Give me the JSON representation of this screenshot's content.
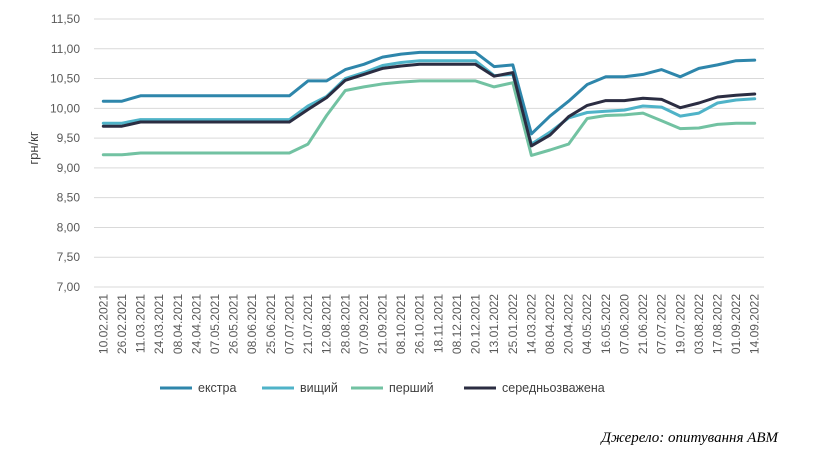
{
  "source_note": "Джерело: опитування АВМ",
  "chart_data": {
    "type": "line",
    "title": "",
    "xlabel": "",
    "ylabel": "грн/кг",
    "ylim": [
      7.0,
      11.5
    ],
    "yticks": [
      "7,00",
      "7,50",
      "8,00",
      "8,50",
      "9,00",
      "9,50",
      "10,00",
      "10,50",
      "11,00",
      "11,50"
    ],
    "grid": true,
    "legend_position": "bottom",
    "categories": [
      "10.02.2021",
      "26.02.2021",
      "11.03.2021",
      "24.03.2021",
      "08.04.2021",
      "24.04.2021",
      "07.05.2021",
      "26.05.2021",
      "08.06.2021",
      "25.06.2021",
      "07.07.2021",
      "21.07.2021",
      "12.08.2021",
      "28.08.2021",
      "07.09.2021",
      "21.09.2021",
      "08.10.2021",
      "26.10.2021",
      "18.11.2021",
      "08.12.2021",
      "20.12.2021",
      "13.01.2022",
      "25.01.2022",
      "14.03.2022",
      "08.04.2022",
      "20.04.2022",
      "04.05.2022",
      "16.05.2022",
      "07.06.2020",
      "21.06.2022",
      "07.07.2022",
      "19.07.2022",
      "03.08.2022",
      "17.08.2022",
      "01.09.2022",
      "14.09.2022"
    ],
    "series": [
      {
        "name": "екстра",
        "color": "#2e86ab",
        "values": [
          10.12,
          10.12,
          10.21,
          10.21,
          10.21,
          10.21,
          10.21,
          10.21,
          10.21,
          10.21,
          10.21,
          10.46,
          10.46,
          10.65,
          10.74,
          10.86,
          10.91,
          10.94,
          10.94,
          10.94,
          10.94,
          10.7,
          10.73,
          9.57,
          9.87,
          10.12,
          10.4,
          10.53,
          10.53,
          10.57,
          10.65,
          10.53,
          10.67,
          10.73,
          10.8,
          10.81
        ]
      },
      {
        "name": "вищий",
        "color": "#4fb3c8",
        "values": [
          9.75,
          9.75,
          9.81,
          9.81,
          9.81,
          9.81,
          9.81,
          9.81,
          9.81,
          9.81,
          9.81,
          10.04,
          10.2,
          10.5,
          10.6,
          10.72,
          10.77,
          10.8,
          10.8,
          10.8,
          10.8,
          10.55,
          10.57,
          9.4,
          9.6,
          9.84,
          9.93,
          9.95,
          9.97,
          10.04,
          10.02,
          9.87,
          9.92,
          10.09,
          10.14,
          10.16
        ]
      },
      {
        "name": "перший",
        "color": "#72c2a2",
        "values": [
          9.22,
          9.22,
          9.25,
          9.25,
          9.25,
          9.25,
          9.25,
          9.25,
          9.25,
          9.25,
          9.25,
          9.4,
          9.88,
          10.3,
          10.36,
          10.41,
          10.44,
          10.46,
          10.46,
          10.46,
          10.46,
          10.36,
          10.43,
          9.21,
          9.3,
          9.4,
          9.83,
          9.88,
          9.89,
          9.92,
          9.79,
          9.66,
          9.67,
          9.73,
          9.75,
          9.75
        ]
      },
      {
        "name": "середньозважена",
        "color": "#2b2d42",
        "values": [
          9.7,
          9.7,
          9.77,
          9.77,
          9.77,
          9.77,
          9.77,
          9.77,
          9.77,
          9.77,
          9.77,
          9.98,
          10.18,
          10.47,
          10.57,
          10.67,
          10.71,
          10.74,
          10.74,
          10.74,
          10.74,
          10.54,
          10.6,
          9.37,
          9.55,
          9.86,
          10.05,
          10.13,
          10.13,
          10.17,
          10.15,
          10.01,
          10.09,
          10.19,
          10.22,
          10.24
        ]
      }
    ]
  }
}
